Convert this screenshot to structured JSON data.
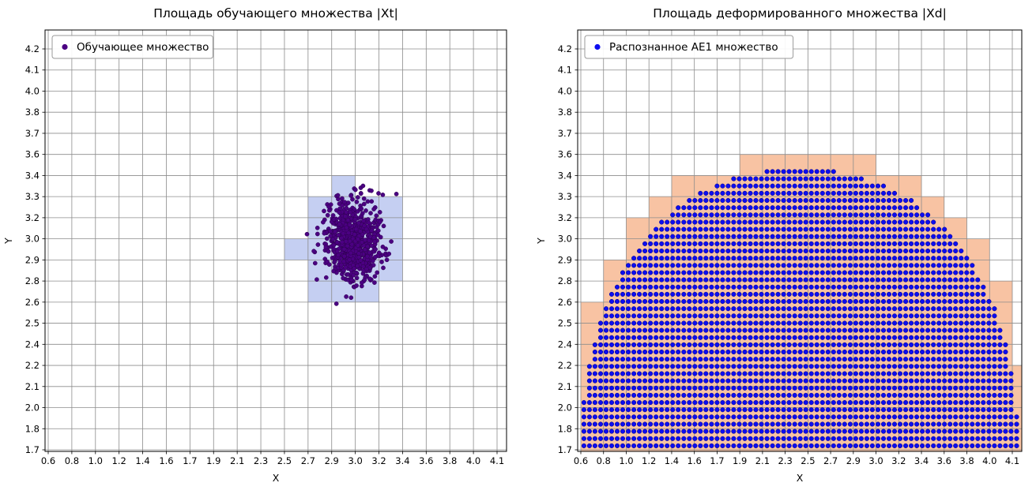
{
  "figure": {
    "background": "#ffffff",
    "grid_color": "#8c8c8c",
    "spine_color": "#000000"
  },
  "chart_data": [
    {
      "type": "scatter",
      "title": "Площадь обучающего множества |Xt|",
      "xlabel": "X",
      "ylabel": "Y",
      "x_range": [
        0.6,
        4.1
      ],
      "y_range": [
        1.7,
        4.2
      ],
      "grid": true,
      "x_tick_labels": [
        "0.6",
        "0.8",
        "1.0",
        "1.2",
        "1.4",
        "1.6",
        "1.7",
        "1.9",
        "2.1",
        "2.3",
        "2.5",
        "2.7",
        "2.9",
        "3.0",
        "3.2",
        "3.4",
        "3.6",
        "3.8",
        "4.0",
        "4.1"
      ],
      "y_tick_labels": [
        "1.7",
        "1.8",
        "2.0",
        "2.1",
        "2.2",
        "2.4",
        "2.5",
        "2.6",
        "2.8",
        "2.9",
        "3.0",
        "3.2",
        "3.3",
        "3.4",
        "3.6",
        "3.7",
        "3.8",
        "4.0",
        "4.1",
        "4.2"
      ],
      "legend": {
        "label": "Обучающее множество",
        "marker_color": "#4b0082",
        "position": "upper-left"
      },
      "points": {
        "distribution": "gaussian",
        "center": [
          2.98,
          3.0
        ],
        "std": [
          0.105,
          0.12
        ],
        "count": 800,
        "color": "#4b0082",
        "edge_color": "#2e0050",
        "clip": [
          2.55,
          3.42,
          2.58,
          3.39
        ]
      },
      "highlight_cells": {
        "color": "#c5cff2",
        "note": "grid cells covered by training set, in [x_cell,y_cell] tick-index units",
        "cells": [
          [
            11,
            7
          ],
          [
            12,
            7
          ],
          [
            13,
            7
          ],
          [
            11,
            8
          ],
          [
            12,
            8
          ],
          [
            13,
            8
          ],
          [
            14,
            8
          ],
          [
            10,
            9
          ],
          [
            11,
            9
          ],
          [
            12,
            9
          ],
          [
            13,
            9
          ],
          [
            14,
            9
          ],
          [
            11,
            10
          ],
          [
            12,
            10
          ],
          [
            13,
            10
          ],
          [
            14,
            10
          ],
          [
            11,
            11
          ],
          [
            12,
            11
          ],
          [
            13,
            11
          ],
          [
            14,
            11
          ],
          [
            12,
            12
          ]
        ]
      }
    },
    {
      "type": "scatter",
      "title": "Площадь деформированного множества |Xd|",
      "xlabel": "X",
      "ylabel": "Y",
      "x_range": [
        0.6,
        4.1
      ],
      "y_range": [
        1.7,
        4.2
      ],
      "grid": true,
      "x_tick_labels": [
        "0.6",
        "0.8",
        "1.0",
        "1.2",
        "1.4",
        "1.6",
        "1.7",
        "1.9",
        "2.1",
        "2.3",
        "2.5",
        "2.7",
        "2.9",
        "3.0",
        "3.2",
        "3.4",
        "3.6",
        "3.8",
        "4.0",
        "4.1"
      ],
      "y_tick_labels": [
        "1.7",
        "1.8",
        "2.0",
        "2.1",
        "2.2",
        "2.4",
        "2.5",
        "2.6",
        "2.8",
        "2.9",
        "3.0",
        "3.2",
        "3.3",
        "3.4",
        "3.6",
        "3.7",
        "3.8",
        "4.0",
        "4.1",
        "4.2"
      ],
      "legend": {
        "label": "Распознанное AE1 множество",
        "marker_color": "#0d0df0",
        "position": "upper-left"
      },
      "dome": {
        "note": "recognized region: dome (superellipse) filled with a regular grid of dots; covered grid cells shaded",
        "center": [
          2.375,
          1.7
        ],
        "rx": 1.77,
        "ry": 1.75,
        "exponent": 2.2,
        "dot_step": 0.045,
        "dot_color": "#0d0df0",
        "dot_edge_color": "#000080",
        "cell_color": "#f8c3a3"
      }
    }
  ]
}
